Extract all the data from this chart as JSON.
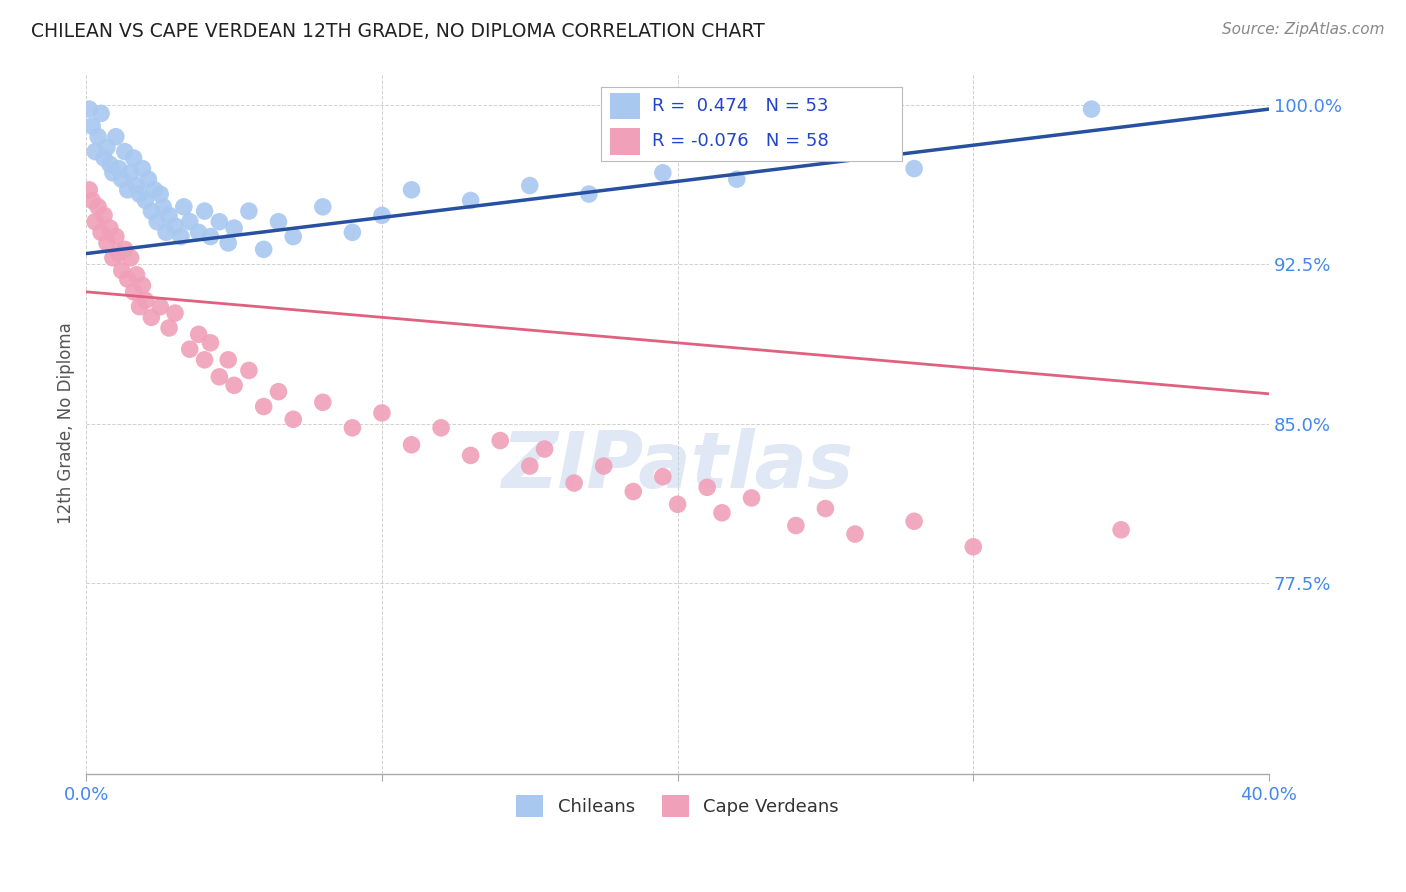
{
  "title": "CHILEAN VS CAPE VERDEAN 12TH GRADE, NO DIPLOMA CORRELATION CHART",
  "source": "Source: ZipAtlas.com",
  "ylabel": "12th Grade, No Diploma",
  "yticks": [
    0.775,
    0.85,
    0.925,
    1.0
  ],
  "ytick_labels": [
    "77.5%",
    "85.0%",
    "92.5%",
    "100.0%"
  ],
  "xmin": 0.0,
  "xmax": 0.4,
  "ymin": 0.685,
  "ymax": 1.015,
  "blue_R": 0.474,
  "blue_N": 53,
  "pink_R": -0.076,
  "pink_N": 58,
  "blue_color": "#a8c8f0",
  "pink_color": "#f0a0b8",
  "blue_line_color": "#2850a0",
  "pink_line_color": "#e06080",
  "legend_label_blue": "Chileans",
  "legend_label_pink": "Cape Verdeans",
  "blue_line_x0": 0.0,
  "blue_line_y0": 0.93,
  "blue_line_x1": 0.4,
  "blue_line_y1": 0.998,
  "pink_line_x0": 0.0,
  "pink_line_y0": 0.912,
  "pink_line_x1": 0.4,
  "pink_line_y1": 0.864,
  "blue_scatter": [
    [
      0.001,
      0.998
    ],
    [
      0.002,
      0.99
    ],
    [
      0.003,
      0.978
    ],
    [
      0.004,
      0.985
    ],
    [
      0.005,
      0.996
    ],
    [
      0.006,
      0.975
    ],
    [
      0.007,
      0.98
    ],
    [
      0.008,
      0.972
    ],
    [
      0.009,
      0.968
    ],
    [
      0.01,
      0.985
    ],
    [
      0.011,
      0.97
    ],
    [
      0.012,
      0.965
    ],
    [
      0.013,
      0.978
    ],
    [
      0.014,
      0.96
    ],
    [
      0.015,
      0.968
    ],
    [
      0.016,
      0.975
    ],
    [
      0.017,
      0.962
    ],
    [
      0.018,
      0.958
    ],
    [
      0.019,
      0.97
    ],
    [
      0.02,
      0.955
    ],
    [
      0.021,
      0.965
    ],
    [
      0.022,
      0.95
    ],
    [
      0.023,
      0.96
    ],
    [
      0.024,
      0.945
    ],
    [
      0.025,
      0.958
    ],
    [
      0.026,
      0.952
    ],
    [
      0.027,
      0.94
    ],
    [
      0.028,
      0.948
    ],
    [
      0.03,
      0.943
    ],
    [
      0.032,
      0.938
    ],
    [
      0.033,
      0.952
    ],
    [
      0.035,
      0.945
    ],
    [
      0.038,
      0.94
    ],
    [
      0.04,
      0.95
    ],
    [
      0.042,
      0.938
    ],
    [
      0.045,
      0.945
    ],
    [
      0.048,
      0.935
    ],
    [
      0.05,
      0.942
    ],
    [
      0.055,
      0.95
    ],
    [
      0.06,
      0.932
    ],
    [
      0.065,
      0.945
    ],
    [
      0.07,
      0.938
    ],
    [
      0.08,
      0.952
    ],
    [
      0.09,
      0.94
    ],
    [
      0.1,
      0.948
    ],
    [
      0.11,
      0.96
    ],
    [
      0.13,
      0.955
    ],
    [
      0.15,
      0.962
    ],
    [
      0.17,
      0.958
    ],
    [
      0.195,
      0.968
    ],
    [
      0.22,
      0.965
    ],
    [
      0.28,
      0.97
    ],
    [
      0.34,
      0.998
    ]
  ],
  "pink_scatter": [
    [
      0.001,
      0.96
    ],
    [
      0.002,
      0.955
    ],
    [
      0.003,
      0.945
    ],
    [
      0.004,
      0.952
    ],
    [
      0.005,
      0.94
    ],
    [
      0.006,
      0.948
    ],
    [
      0.007,
      0.935
    ],
    [
      0.008,
      0.942
    ],
    [
      0.009,
      0.928
    ],
    [
      0.01,
      0.938
    ],
    [
      0.011,
      0.93
    ],
    [
      0.012,
      0.922
    ],
    [
      0.013,
      0.932
    ],
    [
      0.014,
      0.918
    ],
    [
      0.015,
      0.928
    ],
    [
      0.016,
      0.912
    ],
    [
      0.017,
      0.92
    ],
    [
      0.018,
      0.905
    ],
    [
      0.019,
      0.915
    ],
    [
      0.02,
      0.908
    ],
    [
      0.022,
      0.9
    ],
    [
      0.025,
      0.905
    ],
    [
      0.028,
      0.895
    ],
    [
      0.03,
      0.902
    ],
    [
      0.035,
      0.885
    ],
    [
      0.038,
      0.892
    ],
    [
      0.04,
      0.88
    ],
    [
      0.042,
      0.888
    ],
    [
      0.045,
      0.872
    ],
    [
      0.048,
      0.88
    ],
    [
      0.05,
      0.868
    ],
    [
      0.055,
      0.875
    ],
    [
      0.06,
      0.858
    ],
    [
      0.065,
      0.865
    ],
    [
      0.07,
      0.852
    ],
    [
      0.08,
      0.86
    ],
    [
      0.09,
      0.848
    ],
    [
      0.1,
      0.855
    ],
    [
      0.11,
      0.84
    ],
    [
      0.12,
      0.848
    ],
    [
      0.13,
      0.835
    ],
    [
      0.14,
      0.842
    ],
    [
      0.15,
      0.83
    ],
    [
      0.155,
      0.838
    ],
    [
      0.165,
      0.822
    ],
    [
      0.175,
      0.83
    ],
    [
      0.185,
      0.818
    ],
    [
      0.195,
      0.825
    ],
    [
      0.2,
      0.812
    ],
    [
      0.21,
      0.82
    ],
    [
      0.215,
      0.808
    ],
    [
      0.225,
      0.815
    ],
    [
      0.24,
      0.802
    ],
    [
      0.25,
      0.81
    ],
    [
      0.26,
      0.798
    ],
    [
      0.28,
      0.804
    ],
    [
      0.3,
      0.792
    ],
    [
      0.35,
      0.8
    ]
  ]
}
